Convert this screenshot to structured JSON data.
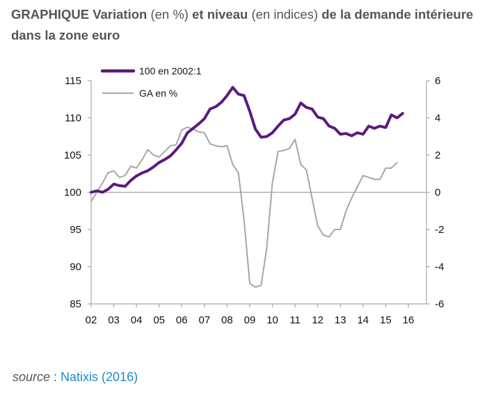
{
  "title": {
    "parts": [
      {
        "text": "GRAPHIQUE ",
        "bold": true
      },
      {
        "text": "Variation",
        "bold": true
      },
      {
        "text": " (en %) ",
        "bold": false
      },
      {
        "text": "et niveau",
        "bold": true
      },
      {
        "text": " (en indices) ",
        "bold": false
      },
      {
        "text": "de la demande intérieure dans la zone euro",
        "bold": true
      }
    ]
  },
  "source": {
    "label": "source",
    "separator": " : ",
    "link_text": "Natixis (2016)"
  },
  "chart_data": {
    "type": "line",
    "title": "Variation (en %) et niveau (en indices) de la demande intérieure dans la zone euro",
    "xlabel": "",
    "ylabel_left": "",
    "ylabel_right": "",
    "x_start": "2002Q1",
    "x_frequency": "quarterly",
    "xlim": [
      2002,
      2016.8
    ],
    "x_ticks": [
      2002,
      2003,
      2004,
      2005,
      2006,
      2007,
      2008,
      2009,
      2010,
      2011,
      2012,
      2013,
      2014,
      2015,
      2016
    ],
    "x_tick_labels": [
      "02",
      "03",
      "04",
      "05",
      "06",
      "07",
      "08",
      "09",
      "10",
      "11",
      "12",
      "13",
      "14",
      "15",
      "16"
    ],
    "ylim_left": [
      85,
      115
    ],
    "y_ticks_left": [
      85,
      90,
      95,
      100,
      105,
      110,
      115
    ],
    "y_tick_labels_left": [
      "85",
      "90",
      "95",
      "100",
      "105",
      "110",
      "115"
    ],
    "ylim_right": [
      -6,
      6
    ],
    "y_ticks_right": [
      -6,
      -4,
      -2,
      0,
      2,
      4,
      6
    ],
    "y_tick_labels_right": [
      "-6",
      "-4",
      "-2",
      "0",
      "2",
      "4",
      "6"
    ],
    "reference_line": {
      "axis": "left",
      "value": 100
    },
    "grid": false,
    "legend_position": "top-left",
    "series": [
      {
        "name": "100 en 2002:1",
        "axis": "left",
        "color": "#5b1a7e",
        "values": [
          100.0,
          100.2,
          100.0,
          100.4,
          101.1,
          100.9,
          100.8,
          101.6,
          102.2,
          102.6,
          102.9,
          103.4,
          104.0,
          104.4,
          104.9,
          105.7,
          106.6,
          108.0,
          108.6,
          109.2,
          109.9,
          111.2,
          111.5,
          112.1,
          113.0,
          114.1,
          113.2,
          113.0,
          110.9,
          108.5,
          107.4,
          107.5,
          108.0,
          108.9,
          109.7,
          109.9,
          110.5,
          112.0,
          111.4,
          111.2,
          110.1,
          109.9,
          108.9,
          108.6,
          107.8,
          107.9,
          107.6,
          108.0,
          107.8,
          108.9,
          108.6,
          108.9,
          108.7,
          110.4,
          110.0,
          110.6
        ]
      },
      {
        "name": "GA en %",
        "axis": "right",
        "color": "#a6a6a6",
        "values": [
          -0.5,
          0.0,
          0.5,
          1.05,
          1.15,
          0.8,
          0.9,
          1.4,
          1.3,
          1.75,
          2.3,
          2.0,
          1.9,
          2.2,
          2.5,
          2.55,
          3.35,
          3.5,
          3.4,
          3.25,
          3.2,
          2.6,
          2.5,
          2.45,
          2.5,
          1.5,
          1.05,
          -1.5,
          -4.9,
          -5.1,
          -5.0,
          -3.0,
          0.5,
          2.2,
          2.25,
          2.35,
          2.85,
          1.5,
          1.2,
          -0.3,
          -1.8,
          -2.3,
          -2.4,
          -2.0,
          -2.0,
          -1.0,
          -0.3,
          0.3,
          0.9,
          0.8,
          0.7,
          0.7,
          1.3,
          1.3,
          1.6
        ]
      }
    ]
  }
}
